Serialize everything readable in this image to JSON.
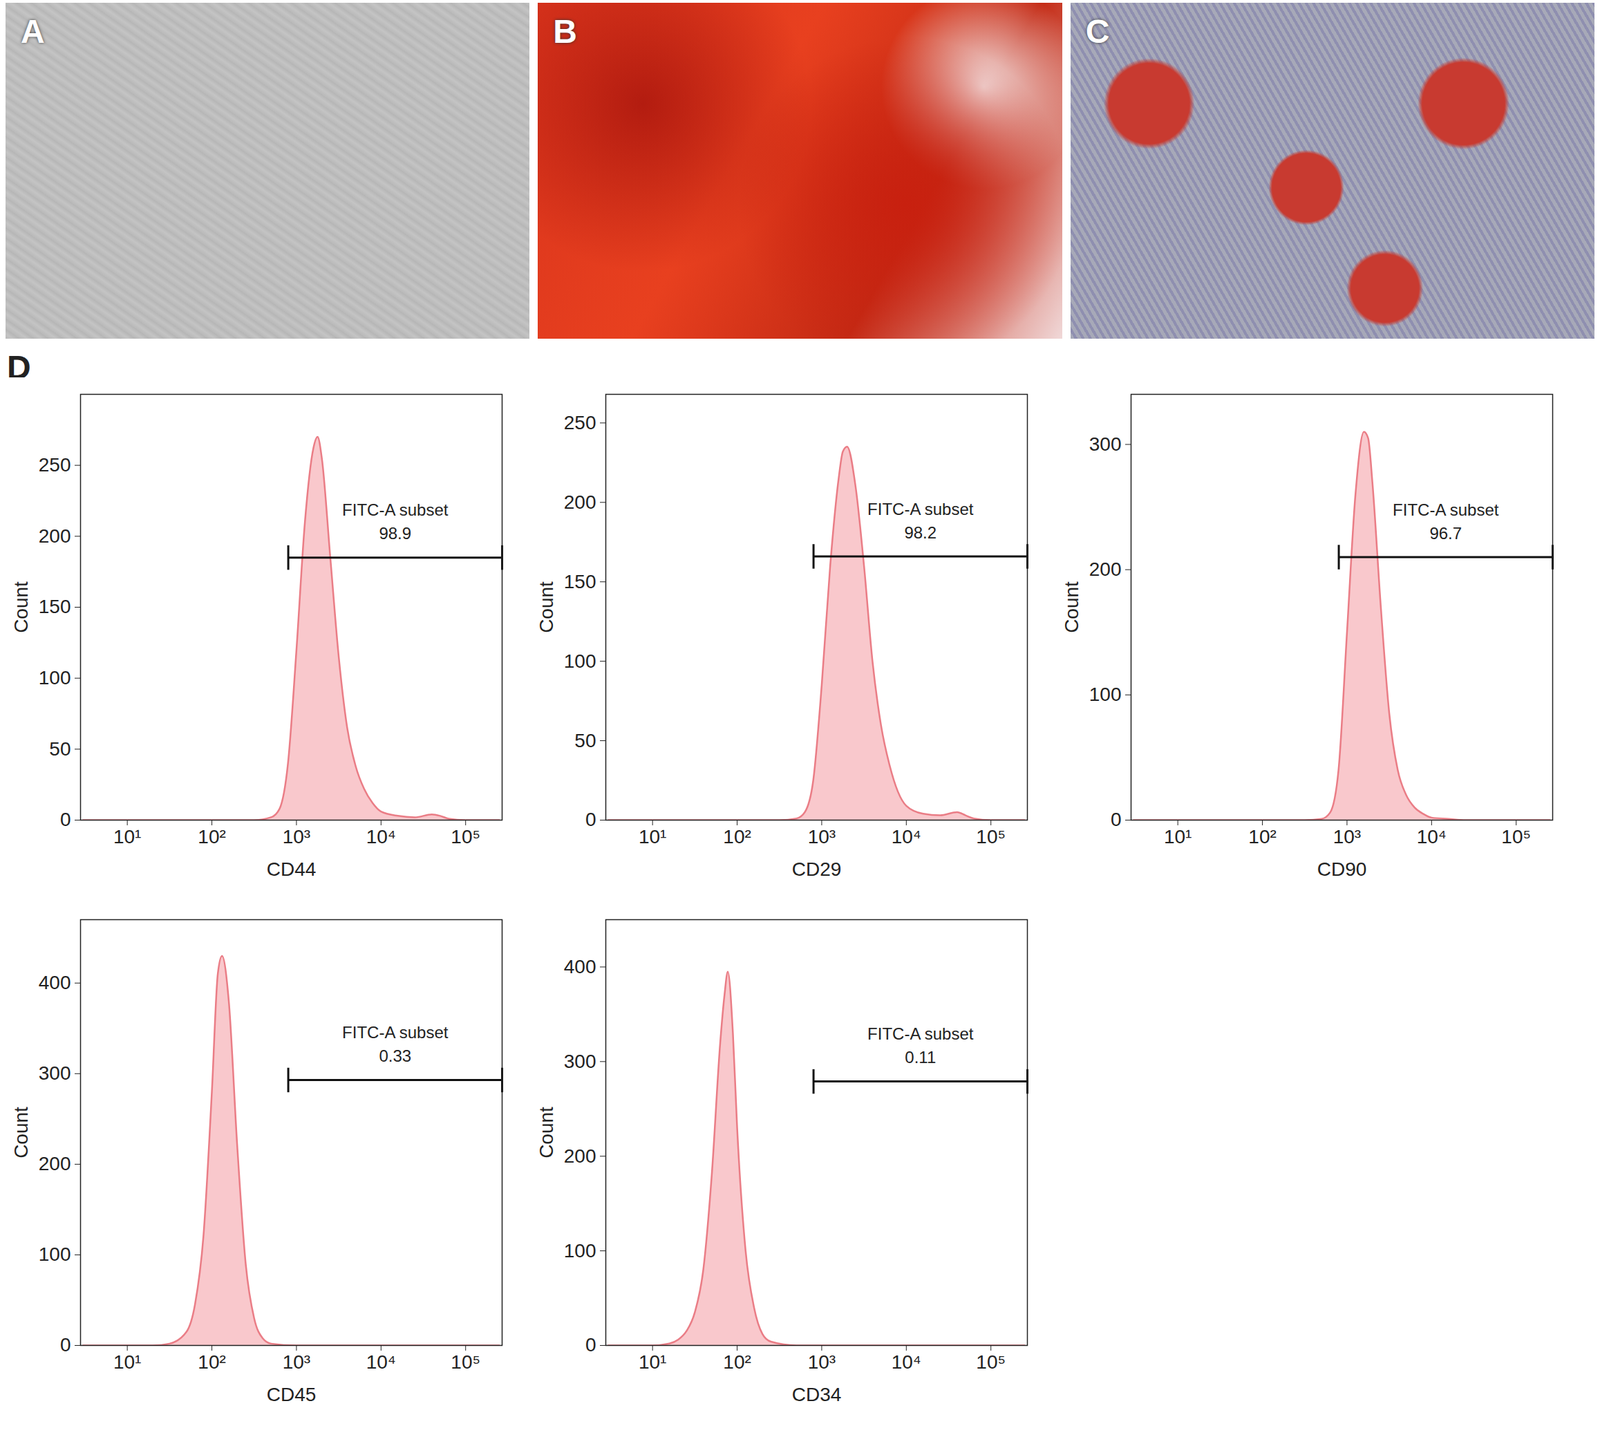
{
  "image_panels": [
    {
      "label": "A"
    },
    {
      "label": "B"
    },
    {
      "label": "C"
    }
  ],
  "figure_label": "D",
  "chart_data": [
    {
      "type": "area",
      "x_label": "CD44",
      "y_label": "Count",
      "log": "x",
      "color": "#f9c8cc",
      "xlim": [
        2.8,
        270000
      ],
      "ylim": [
        0,
        300
      ],
      "xticks": [
        {
          "value": 10,
          "label": "10¹"
        },
        {
          "value": 100,
          "label": "10²"
        },
        {
          "value": 1000,
          "label": "10³"
        },
        {
          "value": 10000,
          "label": "10⁴"
        },
        {
          "value": 100000,
          "label": "10⁵"
        }
      ],
      "yticks": [
        0,
        50,
        100,
        150,
        200,
        250
      ],
      "x": [
        3,
        316,
        501,
        631,
        794,
        1000,
        1259,
        1585,
        1778,
        1995,
        2512,
        3162,
        3981,
        5012,
        6310,
        7943,
        10000,
        15849,
        25119,
        39811,
        50119,
        63096,
        100000,
        250000
      ],
      "values": [
        0,
        0,
        2,
        8,
        40,
        120,
        210,
        262,
        270,
        255,
        185,
        115,
        65,
        38,
        22,
        12,
        6,
        3,
        2,
        4,
        3,
        1,
        0,
        0
      ],
      "gate": {
        "x": [
          800,
          270000
        ],
        "y": 185,
        "label": "FITC-A subset",
        "value": 98.9
      }
    },
    {
      "type": "area",
      "x_label": "CD29",
      "y_label": "Count",
      "log": "x",
      "color": "#f9c8cc",
      "xlim": [
        2.8,
        270000
      ],
      "ylim": [
        0,
        268
      ],
      "xticks": [
        {
          "value": 10,
          "label": "10¹"
        },
        {
          "value": 100,
          "label": "10²"
        },
        {
          "value": 1000,
          "label": "10³"
        },
        {
          "value": 10000,
          "label": "10⁴"
        },
        {
          "value": 100000,
          "label": "10⁵"
        }
      ],
      "yticks": [
        0,
        50,
        100,
        150,
        200,
        250
      ],
      "x": [
        3,
        316,
        501,
        631,
        794,
        1000,
        1259,
        1585,
        1778,
        1995,
        2512,
        3162,
        3981,
        5012,
        6310,
        7943,
        10000,
        15849,
        25119,
        39811,
        50119,
        63096,
        100000,
        250000
      ],
      "values": [
        0,
        0,
        1,
        5,
        25,
        85,
        160,
        215,
        232,
        235,
        210,
        160,
        100,
        60,
        35,
        18,
        9,
        4,
        3,
        5,
        3,
        1,
        0,
        0
      ],
      "gate": {
        "x": [
          800,
          270000
        ],
        "y": 166,
        "label": "FITC-A subset",
        "value": 98.2
      }
    },
    {
      "type": "area",
      "x_label": "CD90",
      "y_label": "Count",
      "log": "x",
      "color": "#f9c8cc",
      "xlim": [
        2.8,
        270000
      ],
      "ylim": [
        0,
        340
      ],
      "xticks": [
        {
          "value": 10,
          "label": "10¹"
        },
        {
          "value": 100,
          "label": "10²"
        },
        {
          "value": 1000,
          "label": "10³"
        },
        {
          "value": 10000,
          "label": "10⁴"
        },
        {
          "value": 100000,
          "label": "10⁵"
        }
      ],
      "yticks": [
        0,
        100,
        200,
        300
      ],
      "x": [
        3,
        316,
        501,
        631,
        794,
        1000,
        1259,
        1585,
        1778,
        1995,
        2512,
        3162,
        3981,
        5012,
        6310,
        7943,
        10000,
        15849,
        25119,
        39811,
        50119,
        63096,
        100000,
        250000
      ],
      "values": [
        0,
        0,
        1,
        6,
        40,
        150,
        260,
        310,
        305,
        270,
        170,
        85,
        40,
        20,
        10,
        5,
        2,
        1,
        0,
        0,
        0,
        0,
        0,
        0
      ],
      "gate": {
        "x": [
          800,
          270000
        ],
        "y": 210,
        "label": "FITC-A subset",
        "value": 96.7
      }
    },
    {
      "type": "area",
      "x_label": "CD45",
      "y_label": "Count",
      "log": "x",
      "color": "#f9c8cc",
      "xlim": [
        2.8,
        270000
      ],
      "ylim": [
        0,
        470
      ],
      "xticks": [
        {
          "value": 10,
          "label": "10¹"
        },
        {
          "value": 100,
          "label": "10²"
        },
        {
          "value": 1000,
          "label": "10³"
        },
        {
          "value": 10000,
          "label": "10⁴"
        },
        {
          "value": 100000,
          "label": "10⁵"
        }
      ],
      "yticks": [
        0,
        100,
        200,
        300,
        400
      ],
      "x": [
        3,
        20,
        31.6,
        50.1,
        63.1,
        79.4,
        100,
        117.5,
        131.8,
        158.5,
        199.5,
        251.2,
        316.2,
        398.1,
        501.2,
        1000,
        250000
      ],
      "values": [
        0,
        0,
        2,
        15,
        45,
        120,
        280,
        410,
        430,
        380,
        220,
        90,
        30,
        8,
        2,
        0,
        0
      ],
      "gate": {
        "x": [
          800,
          270000
        ],
        "y": 293,
        "label": "FITC-A subset",
        "value": 0.33
      }
    },
    {
      "type": "area",
      "x_label": "CD34",
      "y_label": "Count",
      "log": "x",
      "color": "#f9c8cc",
      "xlim": [
        2.8,
        270000
      ],
      "ylim": [
        0,
        450
      ],
      "xticks": [
        {
          "value": 10,
          "label": "10¹"
        },
        {
          "value": 100,
          "label": "10²"
        },
        {
          "value": 1000,
          "label": "10³"
        },
        {
          "value": 10000,
          "label": "10⁴"
        },
        {
          "value": 100000,
          "label": "10⁵"
        }
      ],
      "yticks": [
        0,
        100,
        200,
        300,
        400
      ],
      "x": [
        3,
        10,
        15.8,
        20,
        25.1,
        31.6,
        39.8,
        50.1,
        63.1,
        70.8,
        77.6,
        89.1,
        100,
        125.9,
        158.5,
        199.5,
        251.2,
        501,
        250000
      ],
      "values": [
        0,
        0,
        2,
        6,
        15,
        35,
        80,
        180,
        320,
        370,
        395,
        330,
        230,
        100,
        40,
        12,
        4,
        0,
        0
      ],
      "gate": {
        "x": [
          800,
          270000
        ],
        "y": 279,
        "label": "FITC-A subset",
        "value": 0.11
      }
    }
  ]
}
